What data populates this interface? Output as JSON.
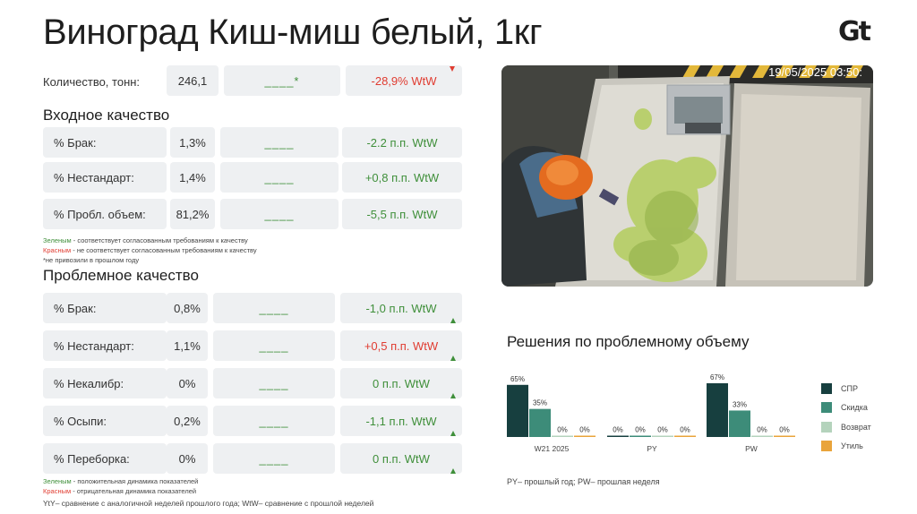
{
  "title": "Виноград Киш-миш белый, 1кг",
  "logo": "Gt",
  "quantity": {
    "label": "Количество, тонн:",
    "value": "246,1",
    "target": "____*",
    "delta": "-28,9% WtW"
  },
  "incoming": {
    "heading": "Входное качество",
    "rows": [
      {
        "label": "% Брак:",
        "value": "1,3%",
        "target": "____",
        "delta": "-2.2 п.п. WtW"
      },
      {
        "label": "% Нестандарт:",
        "value": "1,4%",
        "target": "____",
        "delta": "+0,8 п.п. WtW"
      },
      {
        "label": "% Пробл. объем:",
        "value": "81,2%",
        "target": "____",
        "delta": "-5,5 п.п. WtW"
      }
    ],
    "notes": {
      "green_word": "Зеленым",
      "green_text": " - соответствует согласованным требованиям к качеству",
      "red_word": "Красным",
      "red_text": " - не соответствует согласованным требованиям к качеству",
      "star_text": "*не привозили в прошлом году"
    }
  },
  "problem": {
    "heading": "Проблемное качество",
    "rows": [
      {
        "label": "% Брак:",
        "value": "0,8%",
        "target": "____",
        "delta": "-1,0 п.п. WtW"
      },
      {
        "label": "% Нестандарт:",
        "value": "1,1%",
        "target": "____",
        "delta": "+0,5 п.п. WtW"
      },
      {
        "label": "% Некалибр:",
        "value": "0%",
        "target": "____",
        "delta": "0 п.п. WtW"
      },
      {
        "label": "% Осыпи:",
        "value": "0,2%",
        "target": "____",
        "delta": "-1,1 п.п. WtW"
      },
      {
        "label": "% Переборка:",
        "value": "0%",
        "target": "____",
        "delta": "0 п.п. WtW"
      }
    ],
    "notes": {
      "green_word": "Зеленым",
      "green_text": " - положительная динамика показателей",
      "red_word": "Красным",
      "red_text": " - отрицательная динамика показателей",
      "yty_text": "YtY– сравнение с аналогичной неделей прошлого года; WtW– сравнение с прошлой неделей"
    }
  },
  "photo": {
    "timestamp": "19/05/2025 03:50:"
  },
  "decisions": {
    "heading": "Решения по проблемному объему",
    "footnote": "PY– прошлый год;  PW– прошлая неделя"
  },
  "colors": {
    "spr": "#173f3f",
    "skidka": "#3d8c79",
    "vozvrat": "#b4d3bc",
    "util": "#e9a43b",
    "green": "#3f8f3a",
    "red": "#e03c31"
  },
  "chart_data": {
    "type": "bar",
    "categories": [
      "W21 2025",
      "PY",
      "PW"
    ],
    "series": [
      {
        "name": "СПР",
        "values": [
          65,
          0,
          67
        ]
      },
      {
        "name": "Скидка",
        "values": [
          35,
          0,
          33
        ]
      },
      {
        "name": "Возврат",
        "values": [
          0,
          0,
          0
        ]
      },
      {
        "name": "Утиль",
        "values": [
          0,
          0,
          0
        ]
      }
    ],
    "unit": "%",
    "ylim": [
      0,
      67
    ],
    "legend": "right"
  }
}
